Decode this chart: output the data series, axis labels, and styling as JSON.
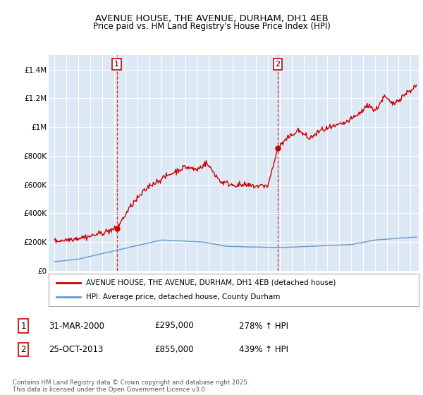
{
  "title": "AVENUE HOUSE, THE AVENUE, DURHAM, DH1 4EB",
  "subtitle": "Price paid vs. HM Land Registry's House Price Index (HPI)",
  "bg_color": "#dce9f5",
  "fig_bg_color": "#ffffff",
  "red_color": "#cc0000",
  "blue_color": "#6699cc",
  "grid_color": "#ffffff",
  "sale1_year": 2000.25,
  "sale1_price": 295000,
  "sale1_label": "1",
  "sale2_year": 2013.82,
  "sale2_price": 855000,
  "sale2_label": "2",
  "ylim": [
    0,
    1500000
  ],
  "xlim": [
    1994.5,
    2025.7
  ],
  "legend_red": "AVENUE HOUSE, THE AVENUE, DURHAM, DH1 4EB (detached house)",
  "legend_blue": "HPI: Average price, detached house, County Durham",
  "table_row1": [
    "1",
    "31-MAR-2000",
    "£295,000",
    "278% ↑ HPI"
  ],
  "table_row2": [
    "2",
    "25-OCT-2013",
    "£855,000",
    "439% ↑ HPI"
  ],
  "footnote": "Contains HM Land Registry data © Crown copyright and database right 2025.\nThis data is licensed under the Open Government Licence v3.0.",
  "yticks": [
    0,
    200000,
    400000,
    600000,
    800000,
    1000000,
    1200000,
    1400000
  ],
  "ytick_labels": [
    "£0",
    "£200K",
    "£400K",
    "£600K",
    "£800K",
    "£1M",
    "£1.2M",
    "£1.4M"
  ],
  "xticks": [
    1995,
    1996,
    1997,
    1998,
    1999,
    2000,
    2001,
    2002,
    2003,
    2004,
    2005,
    2006,
    2007,
    2008,
    2009,
    2010,
    2011,
    2012,
    2013,
    2014,
    2015,
    2016,
    2017,
    2018,
    2019,
    2020,
    2021,
    2022,
    2023,
    2024,
    2025
  ]
}
